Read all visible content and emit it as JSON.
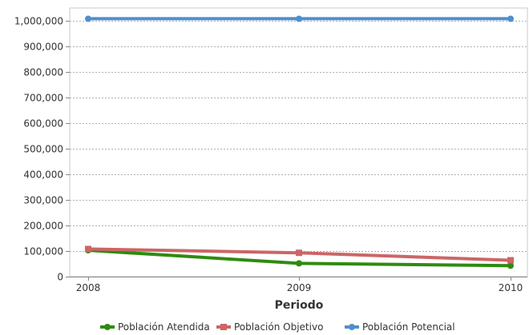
{
  "chart_data": {
    "type": "line",
    "title": "",
    "xlabel": "Periodo",
    "ylabel": "",
    "categories": [
      "2008",
      "2009",
      "2010"
    ],
    "ylim": [
      0,
      1000000
    ],
    "yticks": [
      0,
      100000,
      200000,
      300000,
      400000,
      500000,
      600000,
      700000,
      800000,
      900000,
      1000000
    ],
    "ytick_labels": [
      "0",
      "100,000",
      "200,000",
      "300,000",
      "400,000",
      "500,000",
      "600,000",
      "700,000",
      "800,000",
      "900,000",
      "1,000,000"
    ],
    "grid": true,
    "legend_position": "bottom",
    "series": [
      {
        "name": "Población Atendida",
        "color": "#2e8b10",
        "marker": "circle",
        "values": [
          103000,
          52000,
          43000
        ]
      },
      {
        "name": "Población Objetivo",
        "color": "#cc6666",
        "marker": "square",
        "values": [
          108000,
          93000,
          64000
        ]
      },
      {
        "name": "Población Potencial",
        "color": "#4f8fcc",
        "marker": "circle",
        "values": [
          1008000,
          1008000,
          1008000
        ]
      }
    ]
  }
}
